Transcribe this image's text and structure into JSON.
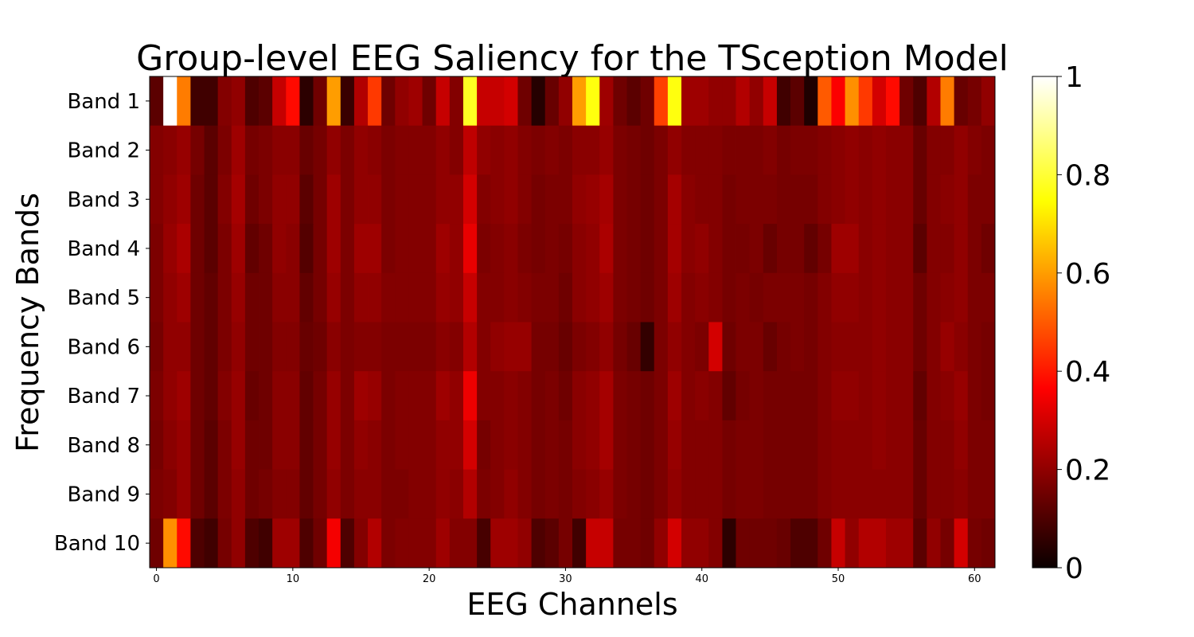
{
  "chart_data": {
    "type": "heatmap",
    "title": "Group-level EEG Saliency for the TSception Model",
    "xlabel": "EEG Channels",
    "ylabel": "Frequency Bands",
    "rows": [
      "Band 1",
      "Band 2",
      "Band 3",
      "Band 4",
      "Band 5",
      "Band 6",
      "Band 7",
      "Band 8",
      "Band 9",
      "Band 10"
    ],
    "x_ticks": [
      "0",
      "10",
      "20",
      "30",
      "40",
      "50",
      "60"
    ],
    "n_channels": 62,
    "colormap": "hot",
    "colorbar": {
      "range": [
        0,
        1
      ],
      "ticks": [
        "0",
        "0.2",
        "0.4",
        "0.6",
        "0.8",
        "1"
      ]
    },
    "values": [
      [
        0.12,
        1.0,
        0.55,
        0.08,
        0.08,
        0.18,
        0.2,
        0.1,
        0.12,
        0.28,
        0.38,
        0.05,
        0.15,
        0.6,
        0.07,
        0.25,
        0.45,
        0.15,
        0.2,
        0.22,
        0.15,
        0.28,
        0.18,
        0.78,
        0.28,
        0.28,
        0.3,
        0.15,
        0.04,
        0.14,
        0.2,
        0.6,
        0.76,
        0.22,
        0.15,
        0.12,
        0.15,
        0.46,
        0.76,
        0.22,
        0.22,
        0.2,
        0.2,
        0.25,
        0.2,
        0.28,
        0.08,
        0.12,
        0.03,
        0.5,
        0.36,
        0.58,
        0.45,
        0.3,
        0.38,
        0.15,
        0.1,
        0.25,
        0.55,
        0.14,
        0.16,
        0.2
      ],
      [
        0.18,
        0.19,
        0.21,
        0.16,
        0.12,
        0.17,
        0.22,
        0.16,
        0.17,
        0.19,
        0.19,
        0.14,
        0.16,
        0.2,
        0.17,
        0.2,
        0.19,
        0.17,
        0.18,
        0.18,
        0.18,
        0.2,
        0.18,
        0.27,
        0.2,
        0.19,
        0.2,
        0.18,
        0.17,
        0.18,
        0.17,
        0.19,
        0.19,
        0.21,
        0.17,
        0.16,
        0.15,
        0.17,
        0.2,
        0.18,
        0.18,
        0.18,
        0.17,
        0.17,
        0.17,
        0.18,
        0.16,
        0.17,
        0.17,
        0.18,
        0.19,
        0.2,
        0.19,
        0.2,
        0.19,
        0.19,
        0.14,
        0.18,
        0.18,
        0.2,
        0.18,
        0.17
      ],
      [
        0.18,
        0.2,
        0.22,
        0.15,
        0.12,
        0.18,
        0.23,
        0.15,
        0.17,
        0.2,
        0.2,
        0.12,
        0.16,
        0.22,
        0.17,
        0.2,
        0.2,
        0.17,
        0.18,
        0.18,
        0.18,
        0.2,
        0.2,
        0.3,
        0.18,
        0.19,
        0.2,
        0.18,
        0.16,
        0.17,
        0.17,
        0.2,
        0.21,
        0.23,
        0.17,
        0.16,
        0.15,
        0.17,
        0.23,
        0.19,
        0.18,
        0.18,
        0.16,
        0.17,
        0.17,
        0.17,
        0.16,
        0.16,
        0.16,
        0.18,
        0.19,
        0.2,
        0.19,
        0.2,
        0.19,
        0.19,
        0.14,
        0.18,
        0.19,
        0.2,
        0.17,
        0.17
      ],
      [
        0.17,
        0.21,
        0.24,
        0.15,
        0.12,
        0.17,
        0.22,
        0.13,
        0.15,
        0.2,
        0.19,
        0.11,
        0.16,
        0.22,
        0.17,
        0.22,
        0.22,
        0.17,
        0.18,
        0.18,
        0.18,
        0.22,
        0.2,
        0.33,
        0.17,
        0.18,
        0.19,
        0.17,
        0.16,
        0.17,
        0.16,
        0.19,
        0.2,
        0.24,
        0.17,
        0.16,
        0.15,
        0.17,
        0.23,
        0.19,
        0.2,
        0.18,
        0.16,
        0.16,
        0.17,
        0.14,
        0.16,
        0.16,
        0.13,
        0.16,
        0.22,
        0.22,
        0.19,
        0.2,
        0.19,
        0.19,
        0.12,
        0.18,
        0.18,
        0.2,
        0.17,
        0.15
      ],
      [
        0.17,
        0.2,
        0.22,
        0.15,
        0.13,
        0.17,
        0.21,
        0.15,
        0.15,
        0.19,
        0.19,
        0.13,
        0.16,
        0.21,
        0.17,
        0.2,
        0.2,
        0.18,
        0.18,
        0.18,
        0.18,
        0.21,
        0.2,
        0.28,
        0.18,
        0.18,
        0.19,
        0.18,
        0.17,
        0.17,
        0.15,
        0.19,
        0.2,
        0.22,
        0.17,
        0.16,
        0.15,
        0.17,
        0.22,
        0.18,
        0.19,
        0.18,
        0.16,
        0.17,
        0.16,
        0.17,
        0.17,
        0.17,
        0.16,
        0.18,
        0.2,
        0.2,
        0.19,
        0.2,
        0.19,
        0.19,
        0.15,
        0.18,
        0.19,
        0.2,
        0.17,
        0.17
      ],
      [
        0.16,
        0.2,
        0.2,
        0.15,
        0.13,
        0.17,
        0.2,
        0.15,
        0.15,
        0.18,
        0.18,
        0.14,
        0.15,
        0.19,
        0.17,
        0.18,
        0.18,
        0.17,
        0.17,
        0.17,
        0.17,
        0.19,
        0.18,
        0.25,
        0.18,
        0.2,
        0.21,
        0.21,
        0.16,
        0.16,
        0.14,
        0.17,
        0.18,
        0.2,
        0.16,
        0.14,
        0.06,
        0.17,
        0.2,
        0.18,
        0.17,
        0.3,
        0.15,
        0.17,
        0.17,
        0.14,
        0.16,
        0.17,
        0.16,
        0.18,
        0.19,
        0.19,
        0.19,
        0.2,
        0.19,
        0.19,
        0.15,
        0.18,
        0.21,
        0.19,
        0.17,
        0.16
      ],
      [
        0.17,
        0.2,
        0.22,
        0.15,
        0.13,
        0.18,
        0.21,
        0.14,
        0.15,
        0.19,
        0.19,
        0.13,
        0.16,
        0.21,
        0.17,
        0.22,
        0.21,
        0.17,
        0.18,
        0.18,
        0.18,
        0.22,
        0.2,
        0.34,
        0.18,
        0.18,
        0.19,
        0.18,
        0.16,
        0.17,
        0.15,
        0.19,
        0.2,
        0.23,
        0.17,
        0.16,
        0.15,
        0.17,
        0.22,
        0.18,
        0.19,
        0.18,
        0.13,
        0.16,
        0.17,
        0.16,
        0.16,
        0.16,
        0.16,
        0.18,
        0.2,
        0.2,
        0.19,
        0.2,
        0.19,
        0.19,
        0.13,
        0.18,
        0.19,
        0.21,
        0.17,
        0.16
      ],
      [
        0.16,
        0.19,
        0.21,
        0.15,
        0.12,
        0.17,
        0.21,
        0.15,
        0.15,
        0.19,
        0.19,
        0.13,
        0.16,
        0.21,
        0.17,
        0.2,
        0.19,
        0.17,
        0.18,
        0.18,
        0.18,
        0.2,
        0.2,
        0.3,
        0.16,
        0.18,
        0.19,
        0.18,
        0.16,
        0.17,
        0.16,
        0.19,
        0.2,
        0.23,
        0.17,
        0.16,
        0.15,
        0.17,
        0.21,
        0.18,
        0.18,
        0.18,
        0.16,
        0.17,
        0.17,
        0.16,
        0.16,
        0.16,
        0.16,
        0.18,
        0.19,
        0.19,
        0.19,
        0.2,
        0.19,
        0.19,
        0.14,
        0.18,
        0.18,
        0.2,
        0.17,
        0.17
      ],
      [
        0.17,
        0.18,
        0.21,
        0.15,
        0.12,
        0.17,
        0.2,
        0.15,
        0.16,
        0.18,
        0.18,
        0.13,
        0.16,
        0.2,
        0.17,
        0.19,
        0.19,
        0.17,
        0.17,
        0.18,
        0.18,
        0.2,
        0.19,
        0.25,
        0.17,
        0.18,
        0.2,
        0.18,
        0.16,
        0.17,
        0.16,
        0.18,
        0.19,
        0.21,
        0.17,
        0.16,
        0.15,
        0.17,
        0.2,
        0.18,
        0.18,
        0.18,
        0.16,
        0.17,
        0.17,
        0.16,
        0.16,
        0.16,
        0.16,
        0.18,
        0.19,
        0.19,
        0.19,
        0.19,
        0.19,
        0.19,
        0.14,
        0.18,
        0.18,
        0.19,
        0.17,
        0.17
      ],
      [
        0.15,
        0.58,
        0.38,
        0.1,
        0.08,
        0.16,
        0.2,
        0.1,
        0.08,
        0.22,
        0.22,
        0.1,
        0.15,
        0.35,
        0.1,
        0.18,
        0.25,
        0.17,
        0.18,
        0.18,
        0.18,
        0.22,
        0.18,
        0.18,
        0.09,
        0.22,
        0.22,
        0.2,
        0.1,
        0.12,
        0.16,
        0.08,
        0.28,
        0.28,
        0.16,
        0.16,
        0.15,
        0.2,
        0.3,
        0.2,
        0.2,
        0.18,
        0.05,
        0.15,
        0.15,
        0.15,
        0.14,
        0.1,
        0.1,
        0.15,
        0.28,
        0.2,
        0.25,
        0.25,
        0.22,
        0.22,
        0.12,
        0.2,
        0.16,
        0.3,
        0.16,
        0.15
      ]
    ]
  }
}
